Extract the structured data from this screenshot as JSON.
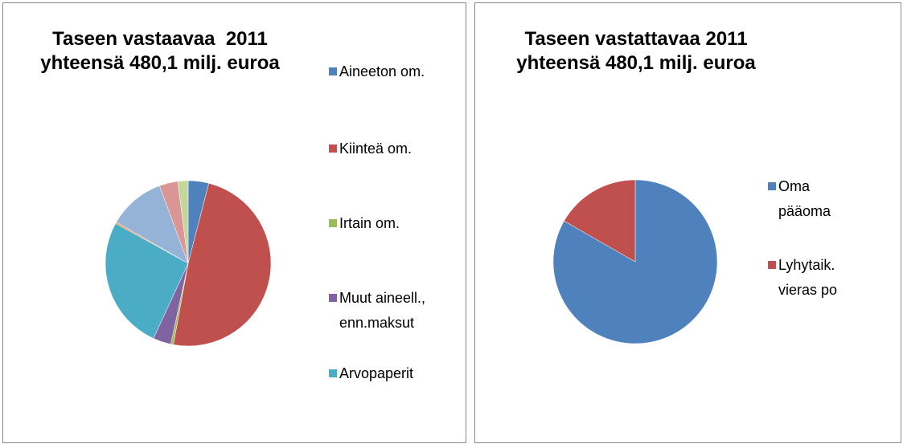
{
  "chart_data": [
    {
      "type": "pie",
      "title": "Taseen vastaavaa  2011\nyhteensä 480,1 milj. euroa",
      "categories": [
        "Aineeton om.",
        "Kiinteä om.",
        "Irtain om.",
        "Muut aineell., enn.maksut",
        "Arvopaperit",
        null,
        null,
        null,
        null
      ],
      "values": [
        4,
        48.6,
        0.5,
        3.5,
        26,
        0.3,
        11,
        3.6,
        2
      ],
      "colors": [
        "#4f81bd",
        "#c0504d",
        "#9bbb59",
        "#8064a2",
        "#4bacc6",
        "#f79646",
        "#95b3d7",
        "#d99694",
        "#c3d69b"
      ]
    },
    {
      "type": "pie",
      "title": "Taseen vastattavaa 2011\nyhteensä 480,1 milj. euroa",
      "categories": [
        "Oma pääoma",
        "Lyhytaik. vieras po"
      ],
      "values": [
        83.3,
        16.7
      ],
      "colors": [
        "#4f81bd",
        "#c0504d"
      ]
    }
  ]
}
